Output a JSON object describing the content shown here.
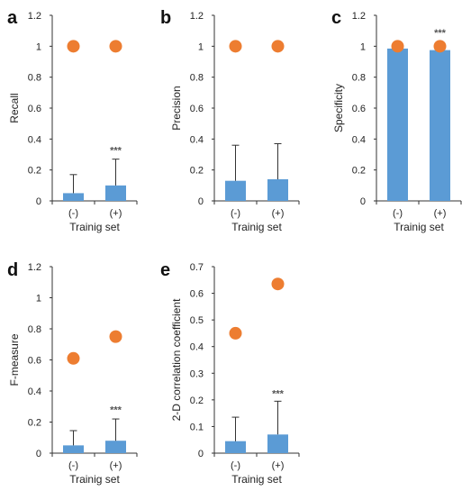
{
  "chart_data": [
    {
      "panel": "a",
      "type": "bar",
      "ylabel": "Recall",
      "xlabel": "Trainig set",
      "categories": [
        "(-)",
        "(+)"
      ],
      "ylim": [
        0,
        1.2
      ],
      "yticks": [
        "0",
        "0.2",
        "0.4",
        "0.6",
        "0.8",
        "1",
        "1.2"
      ],
      "series": [
        {
          "type": "bar",
          "values": [
            0.05,
            0.1
          ],
          "errors": [
            0.12,
            0.17
          ],
          "color": "#5b9bd5"
        },
        {
          "type": "dot",
          "values": [
            1.0,
            1.0
          ],
          "color": "#ed7d31"
        }
      ],
      "annotations": [
        {
          "category": "(+)",
          "text": "***",
          "y": 0.33
        }
      ]
    },
    {
      "panel": "b",
      "type": "bar",
      "ylabel": "Precision",
      "xlabel": "Trainig set",
      "categories": [
        "(-)",
        "(+)"
      ],
      "ylim": [
        0,
        1.2
      ],
      "yticks": [
        "0",
        "0.2",
        "0.4",
        "0.6",
        "0.8",
        "1",
        "1.2"
      ],
      "series": [
        {
          "type": "bar",
          "values": [
            0.13,
            0.14
          ],
          "errors": [
            0.23,
            0.23
          ],
          "color": "#5b9bd5"
        },
        {
          "type": "dot",
          "values": [
            1.0,
            1.0
          ],
          "color": "#ed7d31"
        }
      ],
      "annotations": []
    },
    {
      "panel": "c",
      "type": "bar",
      "ylabel": "Specificity",
      "xlabel": "Trainig set",
      "categories": [
        "(-)",
        "(+)"
      ],
      "ylim": [
        0,
        1.2
      ],
      "yticks": [
        "0",
        "0.2",
        "0.4",
        "0.6",
        "0.8",
        "1",
        "1.2"
      ],
      "series": [
        {
          "type": "bar",
          "values": [
            0.985,
            0.975
          ],
          "errors": [
            0,
            0
          ],
          "color": "#5b9bd5"
        },
        {
          "type": "dot",
          "values": [
            1.0,
            1.0
          ],
          "color": "#ed7d31"
        }
      ],
      "annotations": [
        {
          "category": "(+)",
          "text": "***",
          "y": 1.09
        }
      ]
    },
    {
      "panel": "d",
      "type": "bar",
      "ylabel": "F-measure",
      "xlabel": "Trainig set",
      "categories": [
        "(-)",
        "(+)"
      ],
      "ylim": [
        0,
        1.2
      ],
      "yticks": [
        "0",
        "0.2",
        "0.4",
        "0.6",
        "0.8",
        "1",
        "1.2"
      ],
      "series": [
        {
          "type": "bar",
          "values": [
            0.05,
            0.08
          ],
          "errors": [
            0.095,
            0.14
          ],
          "color": "#5b9bd5"
        },
        {
          "type": "dot",
          "values": [
            0.61,
            0.75
          ],
          "color": "#ed7d31"
        }
      ],
      "annotations": [
        {
          "category": "(+)",
          "text": "***",
          "y": 0.28
        }
      ]
    },
    {
      "panel": "e",
      "type": "bar",
      "ylabel": "2-D correlation coefficient",
      "xlabel": "Trainig set",
      "categories": [
        "(-)",
        "(+)"
      ],
      "ylim": [
        0,
        0.7
      ],
      "yticks": [
        "0",
        "0.1",
        "0.2",
        "0.3",
        "0.4",
        "0.5",
        "0.6",
        "0.7"
      ],
      "series": [
        {
          "type": "bar",
          "values": [
            0.045,
            0.07
          ],
          "errors": [
            0.09,
            0.125
          ],
          "color": "#5b9bd5"
        },
        {
          "type": "dot",
          "values": [
            0.45,
            0.635
          ],
          "color": "#ed7d31"
        }
      ],
      "annotations": [
        {
          "category": "(+)",
          "text": "***",
          "y": 0.225
        }
      ]
    }
  ]
}
